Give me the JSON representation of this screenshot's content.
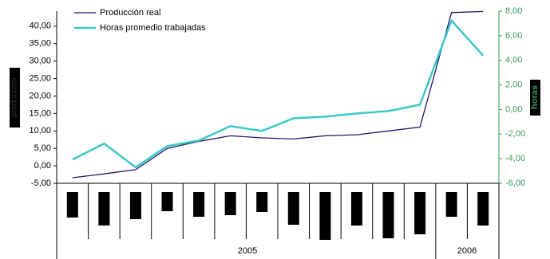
{
  "chart_data": {
    "type": "line",
    "categories": [
      null,
      null,
      null,
      null,
      null,
      null,
      null,
      null,
      null,
      null,
      null,
      null,
      null,
      null
    ],
    "x_groups": [
      "2005",
      "2006"
    ],
    "y_label": "producción",
    "y2_label": "horas",
    "ylim": [
      -5,
      44.3
    ],
    "yticks": [
      {
        "value": -5,
        "label": "-5,00"
      },
      {
        "value": 0,
        "label": "0,00"
      },
      {
        "value": 5,
        "label": "5,00"
      },
      {
        "value": 10,
        "label": "10,00"
      },
      {
        "value": 15,
        "label": "15,00"
      },
      {
        "value": 20,
        "label": "20,00"
      },
      {
        "value": 25,
        "label": "25,00"
      },
      {
        "value": 30,
        "label": "30,00"
      },
      {
        "value": 35,
        "label": "35,00"
      },
      {
        "value": 40,
        "label": "40,00"
      }
    ],
    "y2lim": [
      -6,
      8
    ],
    "y2ticks": [
      {
        "value": -6,
        "label": "-6,00"
      },
      {
        "value": -4,
        "label": "-4,00"
      },
      {
        "value": -2,
        "label": "-2,00"
      },
      {
        "value": 0,
        "label": "0,00"
      },
      {
        "value": 2,
        "label": "2,00"
      },
      {
        "value": 4,
        "label": "4,00"
      },
      {
        "value": 6,
        "label": "6,00"
      },
      {
        "value": 8,
        "label": "8,00"
      }
    ],
    "legend": "top-left",
    "series": [
      {
        "name": "Producción real",
        "color": "#1a1a6e",
        "values": [
          -3.4,
          -2.3,
          -1.1,
          5.0,
          7.0,
          8.6,
          8.0,
          7.7,
          8.6,
          8.9,
          10.0,
          11.1,
          43.9,
          44.2
        ]
      },
      {
        "name": "Horas promedio trabajadas",
        "color": "#3cc8c8",
        "axis": "y2",
        "values": [
          -4.06,
          -2.77,
          -4.7,
          -2.97,
          -2.52,
          -1.35,
          -1.74,
          -0.71,
          -0.58,
          -0.32,
          -0.13,
          0.39,
          7.23,
          4.39
        ]
      }
    ]
  }
}
